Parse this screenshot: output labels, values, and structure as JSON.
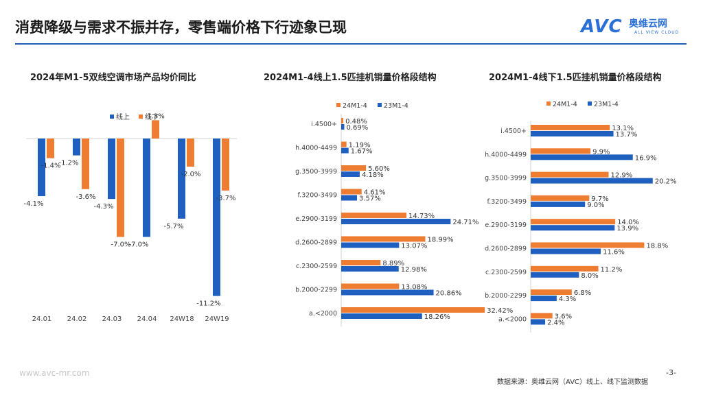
{
  "slide": {
    "title": "消费降级与需求不振并存，零售端价格下行迹象已现",
    "url": "www.avc-mr.com",
    "page": "-3-",
    "source": "数据来源：奥维云网（AVC）线上、线下监测数据"
  },
  "logo": {
    "avc": "AVC",
    "cn": "奥维云网",
    "en": "ALL VIEW CLOUD",
    "color": "#2a6fd6"
  },
  "colors": {
    "blue": "#1f5fbf",
    "orange": "#ee7d31",
    "accent": "#1a5fb4"
  },
  "chart_data": [
    {
      "type": "bar",
      "title": "2024年M1-5双线空调市场产品均价同比",
      "categories": [
        "24.01",
        "24.02",
        "24.03",
        "24.04",
        "24W18",
        "24W19"
      ],
      "series": [
        {
          "name": "线上",
          "values": [
            -4.1,
            -1.2,
            -4.3,
            -7.0,
            -5.7,
            -11.2
          ],
          "labels": [
            "-4.1%",
            "-1.2%",
            "-4.3%",
            "-7.0%",
            "-5.7%",
            "-11.2%"
          ]
        },
        {
          "name": "线下",
          "values": [
            -1.4,
            -3.6,
            -7.0,
            1.3,
            -2.0,
            -3.7
          ],
          "labels": [
            "-1.4%",
            "-3.6%",
            "-7.0%",
            "1.3%",
            "-2.0%",
            "-3.7%"
          ]
        }
      ],
      "ylim": [
        -12,
        2
      ],
      "legend": "top-center",
      "grid": false
    },
    {
      "type": "bar",
      "orientation": "horizontal",
      "title": "2024M1-4线上1.5匹挂机销量价格段结构",
      "categories": [
        "i.4500+",
        "h.4000-4499",
        "g.3500-3999",
        "f.3200-3499",
        "e.2900-3199",
        "d.2600-2899",
        "c.2300-2599",
        "b.2000-2299",
        "a.<2000"
      ],
      "series": [
        {
          "name": "24M1-4",
          "values": [
            0.48,
            1.19,
            5.6,
            4.61,
            14.73,
            18.99,
            8.89,
            13.08,
            32.42
          ],
          "labels": [
            "0.48%",
            "1.19%",
            "5.60%",
            "4.61%",
            "14.73%",
            "18.99%",
            "8.89%",
            "13.08%",
            "32.42%"
          ]
        },
        {
          "name": "23M1-4",
          "values": [
            0.69,
            1.67,
            4.18,
            3.57,
            24.71,
            13.07,
            12.98,
            20.86,
            18.26
          ],
          "labels": [
            "0.69%",
            "1.67%",
            "4.18%",
            "3.57%",
            "24.71%",
            "13.07%",
            "12.98%",
            "20.86%",
            "18.26%"
          ]
        }
      ],
      "xlim": [
        0,
        35
      ],
      "legend": "top-left",
      "grid": false
    },
    {
      "type": "bar",
      "orientation": "horizontal",
      "title": "2024M1-4线下1.5匹挂机销量价格段结构",
      "categories": [
        "i.4500+",
        "h.4000-4499",
        "g.3500-3999",
        "f.3200-3499",
        "e.2900-3199",
        "d.2600-2899",
        "c.2300-2599",
        "b.2000-2299",
        "a.<2000"
      ],
      "series": [
        {
          "name": "24M1-4",
          "values": [
            13.1,
            9.9,
            12.9,
            9.7,
            14.0,
            18.8,
            11.2,
            6.8,
            3.6
          ],
          "labels": [
            "13.1%",
            "9.9%",
            "12.9%",
            "9.7%",
            "14.0%",
            "18.8%",
            "11.2%",
            "6.8%",
            "3.6%"
          ]
        },
        {
          "name": "23M1-4",
          "values": [
            13.7,
            16.9,
            20.2,
            9.0,
            13.9,
            11.6,
            8.0,
            4.3,
            2.4
          ],
          "labels": [
            "13.7%",
            "16.9%",
            "20.2%",
            "9.0%",
            "13.9%",
            "11.6%",
            "8.0%",
            "4.3%",
            "2.4%"
          ]
        }
      ],
      "xlim": [
        0,
        22
      ],
      "legend": "top-left",
      "grid": false
    }
  ]
}
